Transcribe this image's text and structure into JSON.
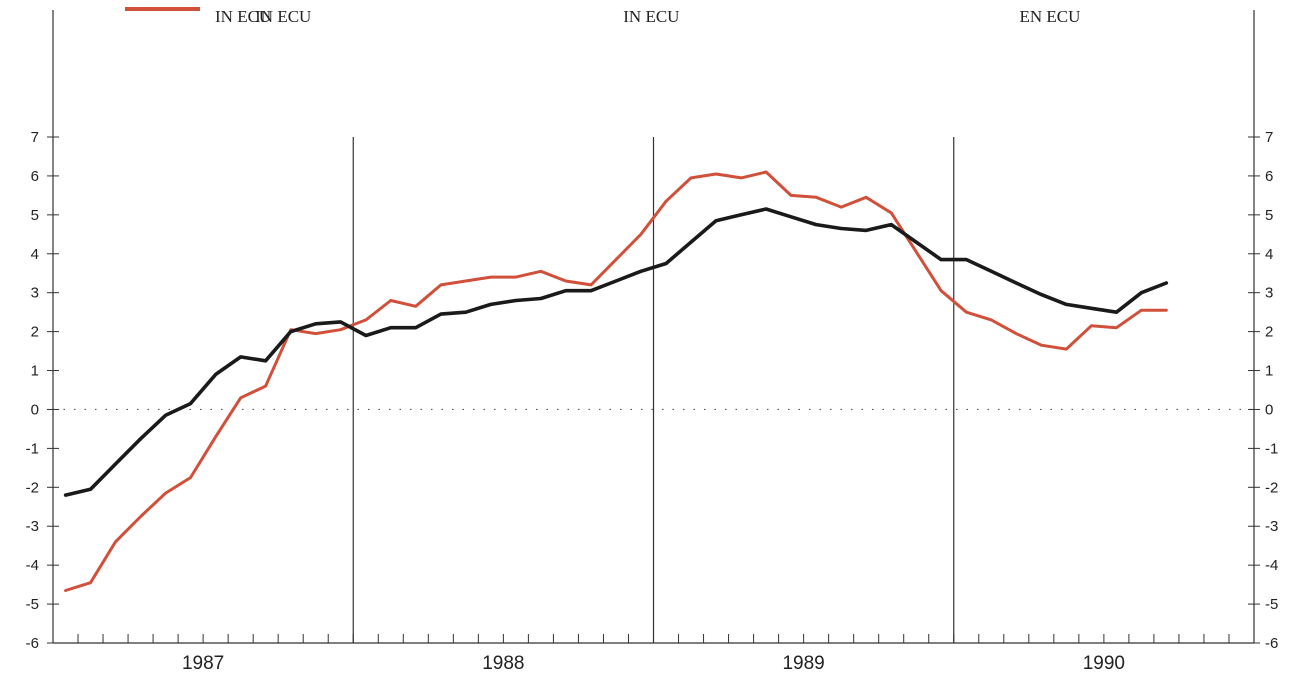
{
  "chart_data": {
    "type": "line",
    "header_labels": [
      "IN ECU",
      "IN ECU",
      "EN ECU"
    ],
    "ylim": [
      -6,
      7
    ],
    "yticks": [
      -6,
      -5,
      -4,
      -3,
      -2,
      -1,
      0,
      1,
      2,
      3,
      4,
      5,
      6,
      7
    ],
    "xlim": [
      1986.5,
      1990.5
    ],
    "year_labels": [
      "1987",
      "1988",
      "1989",
      "1990"
    ],
    "year_label_x": [
      1987,
      1988,
      1989,
      1990
    ],
    "year_dividers": [
      1987.5,
      1988.5,
      1989.5
    ],
    "zero_line": true,
    "colors": {
      "series_red": "#d0503a",
      "series_black": "#1a1a1a",
      "axis": "#333333",
      "zero": "#555555"
    },
    "series": [
      {
        "name": "IN ECU",
        "color": "#d0503a",
        "x": [
          1986.542,
          1986.625,
          1986.708,
          1986.792,
          1986.875,
          1986.958,
          1987.042,
          1987.125,
          1987.208,
          1987.292,
          1987.375,
          1987.458,
          1987.542,
          1987.625,
          1987.708,
          1987.792,
          1987.875,
          1987.958,
          1988.042,
          1988.125,
          1988.208,
          1988.292,
          1988.375,
          1988.458,
          1988.542,
          1988.625,
          1988.708,
          1988.792,
          1988.875,
          1988.958,
          1989.042,
          1989.125,
          1989.208,
          1989.292,
          1989.375,
          1989.458,
          1989.542,
          1989.625,
          1989.708,
          1989.792,
          1989.875,
          1989.958,
          1990.042,
          1990.125,
          1990.208
        ],
        "y": [
          -4.65,
          -4.45,
          -3.4,
          -2.75,
          -2.15,
          -1.75,
          -0.7,
          0.3,
          0.6,
          2.05,
          1.95,
          2.05,
          2.3,
          2.8,
          2.65,
          3.2,
          3.3,
          3.4,
          3.4,
          3.55,
          3.3,
          3.2,
          3.85,
          4.5,
          5.35,
          5.95,
          6.05,
          5.95,
          6.1,
          5.5,
          5.45,
          5.2,
          5.45,
          5.05,
          4.05,
          3.05,
          2.5,
          2.3,
          1.95,
          1.65,
          1.55,
          2.15,
          2.1,
          2.55,
          2.55
        ]
      },
      {
        "name": "",
        "color": "#1a1a1a",
        "x": [
          1986.542,
          1986.625,
          1986.708,
          1986.792,
          1986.875,
          1986.958,
          1987.042,
          1987.125,
          1987.208,
          1987.292,
          1987.375,
          1987.458,
          1987.542,
          1987.625,
          1987.708,
          1987.792,
          1987.875,
          1987.958,
          1988.042,
          1988.125,
          1988.208,
          1988.292,
          1988.375,
          1988.458,
          1988.542,
          1988.625,
          1988.708,
          1988.792,
          1988.875,
          1988.958,
          1989.042,
          1989.125,
          1989.208,
          1989.292,
          1989.375,
          1989.458,
          1989.542,
          1989.625,
          1989.708,
          1989.792,
          1989.875,
          1989.958,
          1990.042,
          1990.125,
          1990.208
        ],
        "y": [
          -2.2,
          -2.05,
          -1.4,
          -0.75,
          -0.15,
          0.15,
          0.9,
          1.35,
          1.25,
          2.0,
          2.2,
          2.25,
          1.9,
          2.1,
          2.1,
          2.45,
          2.5,
          2.7,
          2.8,
          2.85,
          3.05,
          3.05,
          3.3,
          3.55,
          3.75,
          4.3,
          4.85,
          5.0,
          5.15,
          4.95,
          4.75,
          4.65,
          4.6,
          4.75,
          4.3,
          3.85,
          3.85,
          3.55,
          3.25,
          2.95,
          2.7,
          2.6,
          2.5,
          3.0,
          3.25
        ]
      }
    ],
    "legend": {
      "label": "IN ECU",
      "color": "#d0503a"
    }
  }
}
